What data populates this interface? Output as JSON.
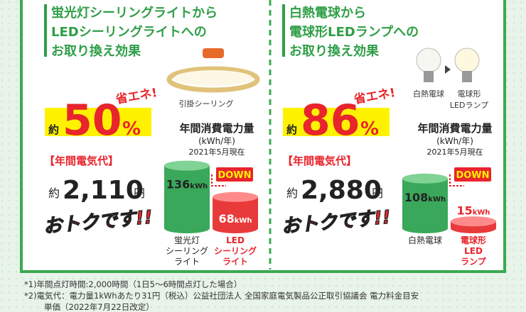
{
  "panels": [
    {
      "title_lines": [
        "蛍光灯シーリングライトから",
        "LEDシーリングライトへの",
        "お取り換え効果"
      ],
      "product_labels": [
        "引掛シーリング"
      ],
      "savings": {
        "prefix": "約",
        "value": 50,
        "unit": "%",
        "tag": "省エネ!"
      },
      "energy_heading": "年間消費電力量",
      "energy_unit": "(kWh/年)",
      "as_of": "2021年5月現在",
      "cost_heading": "【年間電気代】",
      "cost": {
        "prefix": "約",
        "amount": "2,110",
        "unit": "円"
      },
      "slogan": "おトクです!!",
      "down_label": "DOWN",
      "bars": [
        {
          "value": 136,
          "unit": "kWh",
          "label_lines": [
            "蛍光灯",
            "シーリング",
            "ライト"
          ]
        },
        {
          "value": 68,
          "unit": "kWh",
          "label_lines": [
            "LED",
            "シーリング",
            "ライト"
          ]
        }
      ]
    },
    {
      "title_lines": [
        "白熱電球から",
        "電球形LEDランプへの",
        "お取り換え効果"
      ],
      "product_labels": [
        "白熱電球",
        "電球形",
        "LEDランプ"
      ],
      "savings": {
        "prefix": "約",
        "value": 86,
        "unit": "%",
        "tag": "省エネ!"
      },
      "energy_heading": "年間消費電力量",
      "energy_unit": "(kWh/年)",
      "as_of": "2021年5月現在",
      "cost_heading": "【年間電気代】",
      "cost": {
        "prefix": "約",
        "amount": "2,880",
        "unit": "円"
      },
      "slogan": "おトクです!!",
      "down_label": "DOWN",
      "bars": [
        {
          "value": 108,
          "unit": "kWh",
          "label_lines": [
            "白熱電球"
          ]
        },
        {
          "value": 15,
          "unit": "kWh",
          "label_lines": [
            "電球形",
            "LED",
            "ランプ"
          ]
        }
      ]
    }
  ],
  "footnotes": [
    "*1)年間点灯時間:2,000時間（1日5～6時間点灯した場合）",
    "*2)電気代：電力量1kWhあたり31円（税込）公益社団法人 全国家庭電気製品公正取引協議会 電力料金目安",
    "単価（2022年7月22日改定）"
  ]
}
